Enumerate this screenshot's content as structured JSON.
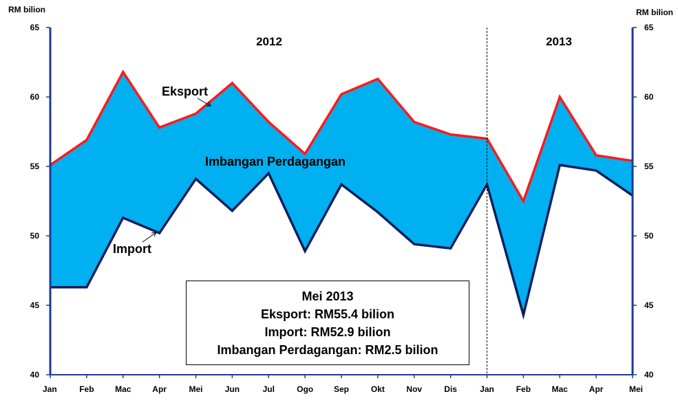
{
  "chart_data": {
    "type": "area",
    "x": [
      "Jan",
      "Feb",
      "Mac",
      "Apr",
      "Mei",
      "Jun",
      "Jul",
      "Ogo",
      "Sep",
      "Okt",
      "Nov",
      "Dis",
      "Jan",
      "Feb",
      "Mac",
      "Apr",
      "Mei"
    ],
    "series": [
      {
        "name": "Eksport",
        "values": [
          55.1,
          56.9,
          61.8,
          57.8,
          58.8,
          61.0,
          58.2,
          55.9,
          60.2,
          61.3,
          58.2,
          57.3,
          57.0,
          52.5,
          60.0,
          55.8,
          55.4
        ]
      },
      {
        "name": "Import",
        "values": [
          46.3,
          46.3,
          51.3,
          50.2,
          54.1,
          51.8,
          54.5,
          48.9,
          53.7,
          51.7,
          49.4,
          49.1,
          53.7,
          44.3,
          55.1,
          54.7,
          52.9
        ]
      }
    ],
    "fill_label": "Imbangan Perdagangan",
    "y_label_left": "RM bilion",
    "y_label_right": "RM bilion",
    "y_ticks": [
      40,
      45,
      50,
      55,
      60,
      65
    ],
    "ylim": [
      40,
      65
    ],
    "years": [
      "2012",
      "2013"
    ],
    "grid": false,
    "colors": {
      "eksport": "#ff1a1a",
      "import": "#0d1f5c",
      "fill": "#00b0f0",
      "axis": "#1f3a93"
    }
  },
  "annotations": {
    "eksport": "Eksport",
    "import": "Import",
    "balance": "Imbangan Perdagangan"
  },
  "infobox": {
    "title": "Mei 2013",
    "eksport": "Eksport: RM55.4 bilion",
    "import": "Import: RM52.9 bilion",
    "balance": "Imbangan Perdagangan: RM2.5 bilion"
  }
}
